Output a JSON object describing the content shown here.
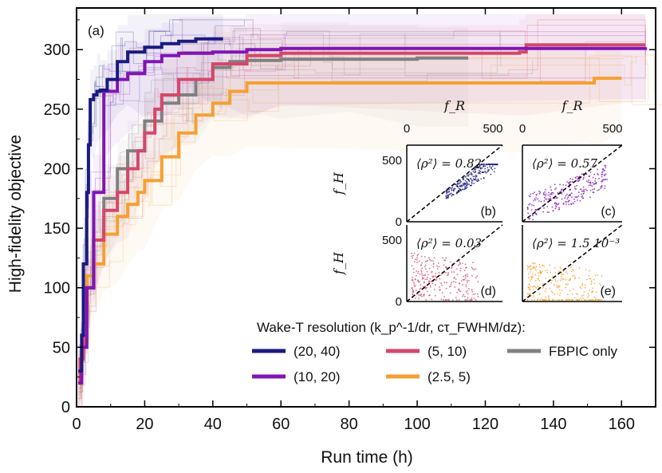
{
  "chart_data": {
    "type": "line",
    "panel_label": "(a)",
    "xlabel": "Run time (h)",
    "ylabel": "High-fidelity objective",
    "xlim": [
      0,
      170
    ],
    "ylim": [
      0,
      335
    ],
    "xticks": [
      0,
      20,
      40,
      60,
      80,
      100,
      120,
      140,
      160
    ],
    "yticks": [
      0,
      50,
      100,
      150,
      200,
      250,
      300
    ],
    "legend_title": "Wake-T resolution (k_p^-1/dr, cτ_FWHM/dz):",
    "series": [
      {
        "name": "(20, 40)",
        "color": "#1a1a80",
        "x": [
          0.5,
          1.5,
          2,
          3,
          3.5,
          4,
          5,
          6,
          7,
          9,
          12,
          15,
          20,
          25,
          30,
          35,
          43
        ],
        "y": [
          30,
          60,
          120,
          180,
          220,
          258,
          262,
          265,
          266,
          275,
          290,
          298,
          302,
          305,
          307,
          309,
          309
        ]
      },
      {
        "name": "(10, 20)",
        "color": "#8015b3",
        "x": [
          0.5,
          1.5,
          3,
          5,
          8,
          12,
          15,
          20,
          25,
          30,
          40,
          50,
          60,
          167
        ],
        "y": [
          20,
          50,
          100,
          180,
          265,
          275,
          280,
          290,
          295,
          297,
          298,
          300,
          301,
          302
        ]
      },
      {
        "name": "(5, 10)",
        "color": "#d4476b",
        "x": [
          0.5,
          1,
          2,
          3,
          5,
          8,
          12,
          15,
          18,
          20,
          23,
          25,
          30,
          40,
          50,
          60,
          130,
          132,
          167
        ],
        "y": [
          20,
          40,
          70,
          100,
          140,
          165,
          180,
          200,
          215,
          230,
          250,
          262,
          275,
          288,
          295,
          297,
          298,
          304,
          304
        ]
      },
      {
        "name": "(2.5, 5)",
        "color": "#f5a032",
        "x": [
          0.5,
          1.5,
          2,
          3,
          5,
          8,
          12,
          15,
          18,
          20,
          25,
          30,
          35,
          40,
          45,
          50,
          131,
          150,
          152,
          160
        ],
        "y": [
          20,
          50,
          80,
          110,
          120,
          145,
          160,
          170,
          180,
          190,
          210,
          230,
          245,
          255,
          265,
          272,
          272,
          272,
          276,
          276
        ]
      },
      {
        "name": "FBPIC only",
        "color": "#808080",
        "x": [
          0.5,
          1.5,
          3,
          5,
          8,
          12,
          15,
          20,
          25,
          30,
          35,
          40,
          45,
          50,
          60,
          80,
          100,
          115
        ],
        "y": [
          20,
          60,
          100,
          140,
          175,
          200,
          215,
          240,
          255,
          262,
          275,
          285,
          290,
          291,
          292,
          292,
          293,
          293
        ]
      }
    ],
    "insets": [
      {
        "label": "(b)",
        "rho": "⟨ρ²⟩ = 0.82",
        "color": "#1a1a80",
        "kind": "tight"
      },
      {
        "label": "(c)",
        "rho": "⟨ρ²⟩ = 0.57",
        "color": "#8015b3",
        "kind": "medium"
      },
      {
        "label": "(d)",
        "rho": "⟨ρ²⟩ = 0.03",
        "color": "#d4476b",
        "kind": "wide"
      },
      {
        "label": "(e)",
        "rho": "⟨ρ²⟩ = 1.5 10⁻³",
        "color": "#f5a032",
        "kind": "wider"
      }
    ],
    "inset_axes": {
      "x_label": "f_R",
      "y_label": "f_H",
      "x_ticks": [
        "0",
        "500"
      ],
      "y_ticks": [
        "0",
        "500"
      ]
    }
  }
}
